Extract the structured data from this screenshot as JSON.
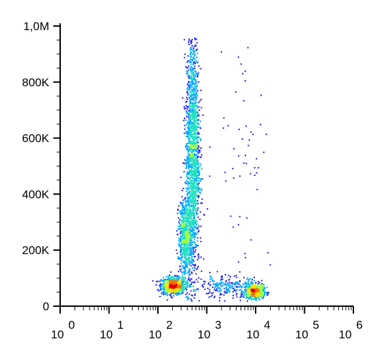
{
  "chart_data": {
    "type": "scatter",
    "title": "",
    "xlabel": "",
    "ylabel": "",
    "x_scale": "log",
    "y_scale": "linear",
    "xlim": [
      1,
      1000000
    ],
    "ylim": [
      0,
      1000000
    ],
    "y_ticks": [
      {
        "value": 0,
        "label": "0"
      },
      {
        "value": 200000,
        "label": "200K"
      },
      {
        "value": 400000,
        "label": "400K"
      },
      {
        "value": 600000,
        "label": "600K"
      },
      {
        "value": 800000,
        "label": "800K"
      },
      {
        "value": 1000000,
        "label": "1,0M"
      }
    ],
    "x_ticks": [
      {
        "value": 1,
        "base": "10",
        "exp": "0"
      },
      {
        "value": 10,
        "base": "10",
        "exp": "1"
      },
      {
        "value": 100,
        "base": "10",
        "exp": "2"
      },
      {
        "value": 1000,
        "base": "10",
        "exp": "3"
      },
      {
        "value": 10000,
        "base": "10",
        "exp": "4"
      },
      {
        "value": 100000,
        "base": "10",
        "exp": "5"
      },
      {
        "value": 1000000,
        "base": "10",
        "exp": "6"
      }
    ],
    "populations": [
      {
        "center_x": 200,
        "center_y": 75000,
        "spread_log_x": 0.12,
        "spread_y": 15000,
        "count": 900
      },
      {
        "center_x": 9000,
        "center_y": 55000,
        "spread_log_x": 0.1,
        "spread_y": 12000,
        "count": 700
      },
      {
        "center_x": 500,
        "center_y": 550000,
        "spread_log_x": 0.07,
        "spread_y": 220000,
        "count": 1800
      },
      {
        "center_x": 350,
        "center_y": 250000,
        "spread_log_x": 0.07,
        "spread_y": 70000,
        "count": 700
      },
      {
        "center_x": 2500,
        "center_y": 70000,
        "spread_log_x": 0.35,
        "spread_y": 20000,
        "count": 250
      },
      {
        "center_x": 5000,
        "center_y": 600000,
        "spread_log_x": 0.3,
        "spread_y": 250000,
        "count": 60
      }
    ],
    "colormap": [
      "#1a1aff",
      "#00a8ff",
      "#22e0c0",
      "#a0ff40",
      "#ffe000",
      "#ff7000",
      "#e00000"
    ]
  }
}
